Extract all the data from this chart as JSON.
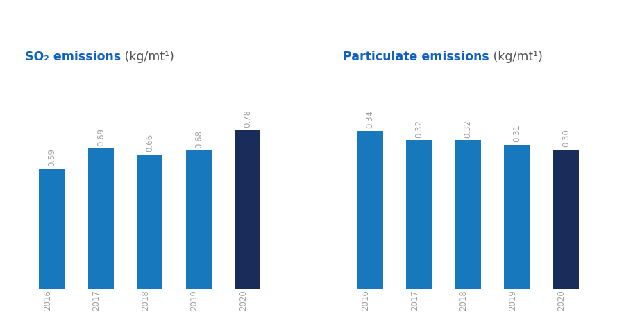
{
  "so2": {
    "title_bold": "SO₂ emissions",
    "title_normal": " (kg/mt¹)",
    "years": [
      "2016",
      "2017",
      "2018",
      "2019",
      "2020"
    ],
    "values": [
      0.59,
      0.69,
      0.66,
      0.68,
      0.78
    ],
    "colors": [
      "#1878be",
      "#1878be",
      "#1878be",
      "#1878be",
      "#1a2d5a"
    ]
  },
  "particulate": {
    "title_bold": "Particulate emissions",
    "title_normal": " (kg/mt¹)",
    "years": [
      "2016",
      "2017",
      "2018",
      "2019",
      "2020"
    ],
    "values": [
      0.34,
      0.32,
      0.32,
      0.31,
      0.3
    ],
    "colors": [
      "#1878be",
      "#1878be",
      "#1878be",
      "#1878be",
      "#1a2d5a"
    ]
  },
  "background_color": "#ffffff",
  "bar_label_color": "#a0a0a0",
  "bar_label_fontsize": 8.5,
  "year_label_color": "#a0a0a0",
  "year_label_fontsize": 8.5,
  "title_bold_color": "#1060c0",
  "title_normal_color": "#555555",
  "title_fontsize": 12.5,
  "bar_width": 0.52,
  "ylim_so2": [
    0,
    1.05
  ],
  "ylim_part": [
    0,
    0.46
  ]
}
